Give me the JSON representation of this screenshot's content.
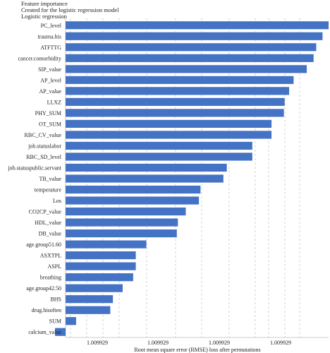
{
  "chart_data": {
    "type": "bar",
    "orientation": "horizontal",
    "title": "Feature importance",
    "subtitle": "Created for the logistic regression model",
    "series_label": "Logistic regression",
    "xlabel": "Root mean square error (RMSE) loss after permutations",
    "ylabel": "",
    "categories": [
      "PC_level",
      "trauma.his",
      "ATFTTG",
      "cancer.comorbidity",
      "SIP_value",
      "AP_level",
      "AP_value",
      "LLXZ",
      "PHY_SUM",
      "OT_SUM",
      "RBC_CV_value",
      "job.statuslabor",
      "RBC_SD_level",
      "job.statuspublic.servant",
      "TB_value",
      "temperature",
      "Los",
      "CO2CP_value",
      "HDL_value",
      "DB_value",
      "age.group51.60",
      "ASXTPL",
      "ASPL",
      "breathing",
      "age.group42.50",
      "BHS",
      "drug.hisoften",
      "SUM",
      "calcium_value"
    ],
    "values": [
      1.0,
      0.977,
      0.953,
      0.943,
      0.917,
      0.867,
      0.85,
      0.833,
      0.83,
      0.783,
      0.783,
      0.71,
      0.71,
      0.613,
      0.6,
      0.513,
      0.507,
      0.457,
      0.427,
      0.423,
      0.307,
      0.267,
      0.267,
      0.257,
      0.217,
      0.18,
      0.17,
      0.04,
      -0.04
    ],
    "value_scale": "relative",
    "xtick_labels": [
      "1.009929",
      "1.009929",
      "1.009929",
      "1.009929"
    ],
    "grid": "vertical dashed",
    "bar_color": "#4472c4"
  }
}
